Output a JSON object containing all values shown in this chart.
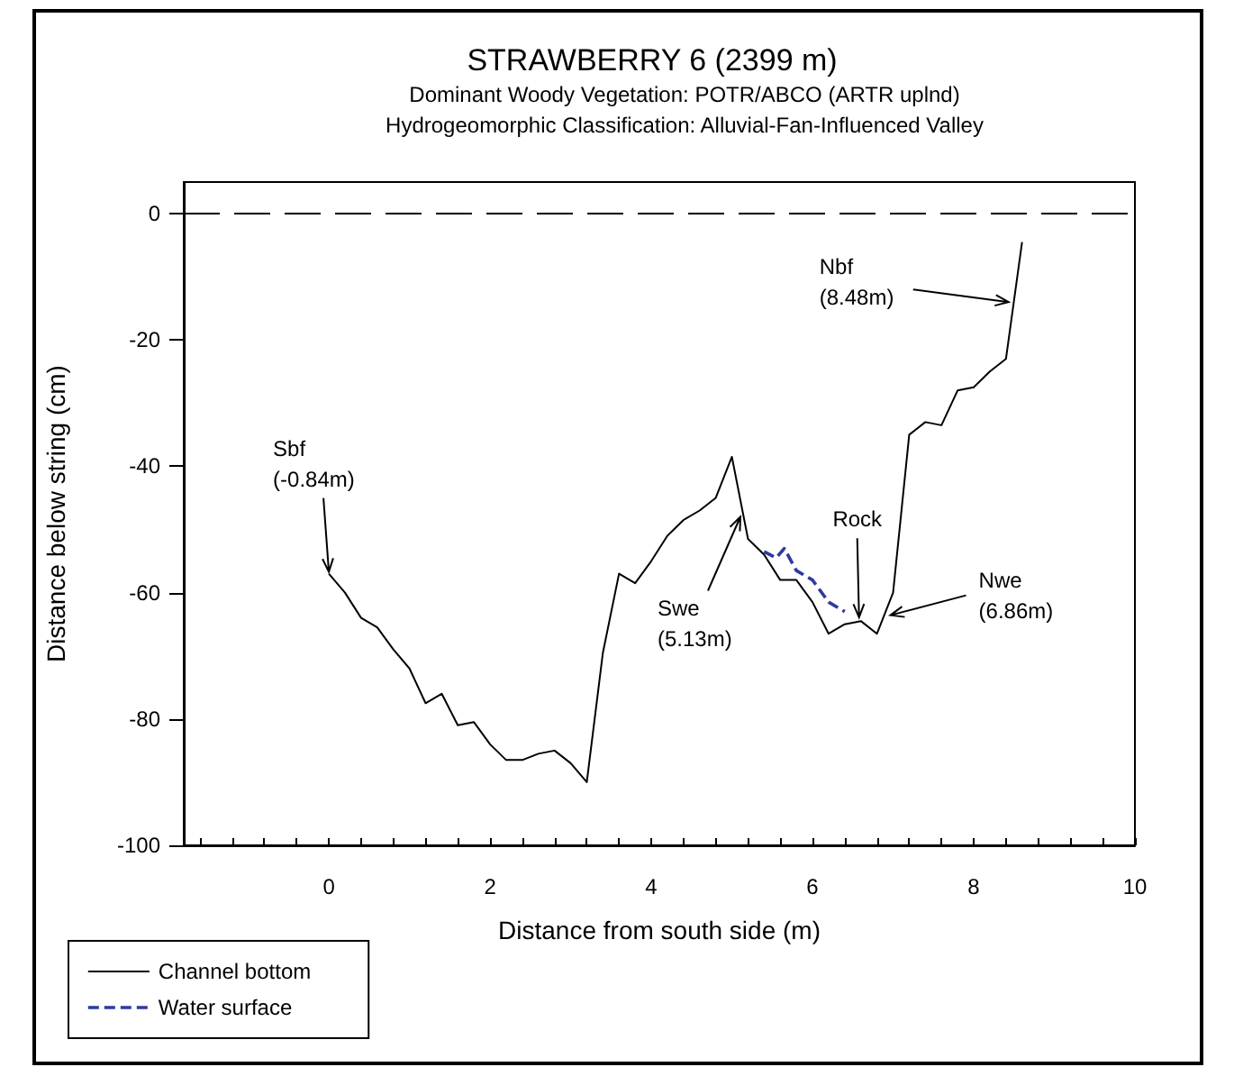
{
  "chart_data": {
    "type": "line",
    "title": "STRAWBERRY 6 (2399 m)",
    "subtitle": "Dominant Woody Vegetation: POTR/ABCO (ARTR uplnd)\nHydrogeomorphic Classification: Alluvial-Fan-Influenced Valley",
    "xlabel": "Distance from south side (m)",
    "ylabel": "Distance below string (cm)",
    "series": [
      {
        "name": "Channel bottom",
        "color": "#000000",
        "line_style": "solid",
        "x": [
          0,
          0.2,
          0.4,
          0.6,
          0.8,
          1,
          1.2,
          1.4,
          1.6,
          1.8,
          2,
          2.2,
          2.4,
          2.6,
          2.8,
          3,
          3.2,
          3.4,
          3.6,
          3.8,
          4,
          4.2,
          4.4,
          4.6,
          4.8,
          5,
          5.2,
          5.4,
          5.6,
          5.8,
          6,
          6.2,
          6.4,
          6.6,
          6.8,
          7,
          7.2,
          7.4,
          7.6,
          7.8,
          8,
          8.2,
          8.4,
          8.6
        ],
        "values": [
          -57,
          -60,
          -64,
          -65.5,
          -69,
          -72,
          -77.5,
          -76,
          -81,
          -80.5,
          -84,
          -86.5,
          -86.5,
          -85.5,
          -85,
          -87,
          -90,
          -69.5,
          -57,
          -58.5,
          -55,
          -51,
          -48.5,
          -47,
          -45,
          -38.5,
          -51.5,
          -54,
          -58,
          -58,
          -61.5,
          -66.5,
          -65,
          -64.5,
          -66.5,
          -60,
          -35,
          -33,
          -33.5,
          -28,
          -27.5,
          -25,
          -23,
          -4.5
        ]
      },
      {
        "name": "Water surface",
        "color": "#2e3a9e",
        "line_style": "dashed",
        "x": [
          5.4,
          5.55,
          5.65,
          5.8,
          6,
          6.2,
          6.4
        ],
        "values": [
          -53.5,
          -54.5,
          -53,
          -56.5,
          -58,
          -61.5,
          -63
        ]
      }
    ],
    "xlim": [
      -1.8,
      10
    ],
    "xticks": [
      {
        "value": -1.6,
        "label": null
      },
      {
        "value": -1.2,
        "label": null
      },
      {
        "value": -0.8,
        "label": null
      },
      {
        "value": -0.4,
        "label": null
      },
      0,
      {
        "value": 0.4,
        "label": null
      },
      {
        "value": 0.8,
        "label": null
      },
      {
        "value": 1.2,
        "label": null
      },
      {
        "value": 1.6,
        "label": null
      },
      2,
      {
        "value": 2.4,
        "label": null
      },
      {
        "value": 2.8,
        "label": null
      },
      {
        "value": 3.2,
        "label": null
      },
      {
        "value": 3.6,
        "label": null
      },
      4,
      {
        "value": 4.4,
        "label": null
      },
      {
        "value": 4.8,
        "label": null
      },
      {
        "value": 5.2,
        "label": null
      },
      {
        "value": 5.6,
        "label": null
      },
      6,
      {
        "value": 6.4,
        "label": null
      },
      {
        "value": 6.8,
        "label": null
      },
      {
        "value": 7.2,
        "label": null
      },
      {
        "value": 7.6,
        "label": null
      },
      8,
      {
        "value": 8.4,
        "label": null
      },
      {
        "value": 8.8,
        "label": null
      },
      {
        "value": 9.2,
        "label": null
      },
      {
        "value": 9.6,
        "label": null
      },
      10
    ],
    "ylim": [
      -100,
      5
    ],
    "yticks": [
      -100,
      -80,
      -60,
      -40,
      -20,
      0
    ],
    "ref_lines": [
      {
        "axis": "y",
        "value": 0,
        "color": "#000000",
        "line_style": "dashed"
      }
    ],
    "annotations": [
      {
        "text": "Sbf\n(-0.84m)",
        "x": 0,
        "y": -57
      },
      {
        "text": "Swe\n(5.13m)",
        "x": 5.15,
        "y": -48
      },
      {
        "text": "Rock",
        "x": 6.6,
        "y": -64.5
      },
      {
        "text": "Nwe\n(6.86m)",
        "x": 6.9,
        "y": -63
      },
      {
        "text": "Nbf\n(8.48m)",
        "x": 8.5,
        "y": -14
      }
    ],
    "legend": "bottom left",
    "marker": "none"
  }
}
